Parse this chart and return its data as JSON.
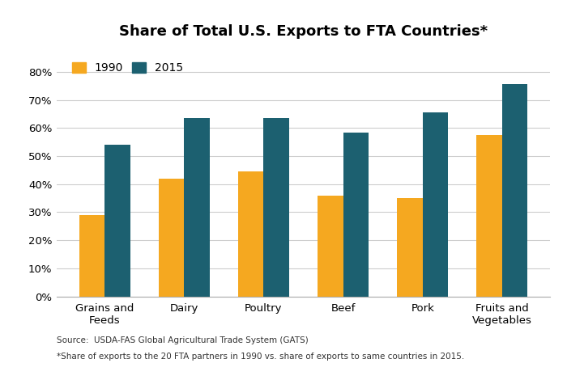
{
  "title": "Share of Total U.S. Exports to FTA Countries*",
  "categories": [
    "Grains and\nFeeds",
    "Dairy",
    "Poultry",
    "Beef",
    "Pork",
    "Fruits and\nVegetables"
  ],
  "values_1990": [
    0.29,
    0.42,
    0.445,
    0.36,
    0.35,
    0.575
  ],
  "values_2015": [
    0.54,
    0.635,
    0.635,
    0.585,
    0.655,
    0.755
  ],
  "color_1990": "#F5A820",
  "color_2015": "#1C6070",
  "legend_labels": [
    "1990",
    "2015"
  ],
  "yticks": [
    0.0,
    0.1,
    0.2,
    0.3,
    0.4,
    0.5,
    0.6,
    0.7,
    0.8
  ],
  "ytick_labels": [
    "0%",
    "10%",
    "20%",
    "30%",
    "40%",
    "50%",
    "60%",
    "70%",
    "80%"
  ],
  "ylim": [
    0,
    0.88
  ],
  "bar_width": 0.32,
  "source_line1": "Source:  USDA-FAS Global Agricultural Trade System (GATS)",
  "source_line2": "*Share of exports to the 20 FTA partners in 1990 vs. share of exports to same countries in 2015.",
  "background_color": "#ffffff",
  "grid_color": "#cccccc"
}
